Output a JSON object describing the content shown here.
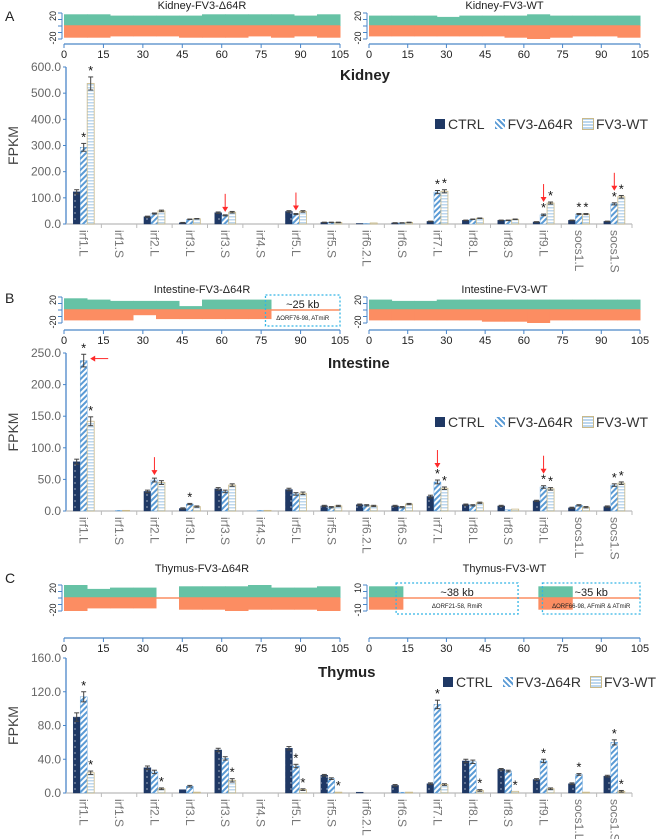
{
  "panels": {
    "a": "A",
    "b": "B",
    "c": "C"
  },
  "legend": {
    "ctrl": "CTRL",
    "d64r": "FV3-Δ64R",
    "wt": "FV3-WT"
  },
  "colors": {
    "ctrl": "#1f3864",
    "d64r": "#5b9bd5",
    "wt": "#bdd7ee",
    "wt_border": "#c9b98a",
    "coverage_plus": "#66c2a5",
    "coverage_minus": "#fc8d62",
    "axis": "#4a86c8",
    "arrow": "#ff2a2a",
    "box": "#33b5e5"
  },
  "tracks": {
    "ticks": [
      "0",
      "15",
      "30",
      "45",
      "60",
      "75",
      "90",
      "105"
    ],
    "kidney_d64r": {
      "title": "Kidney-FV3-Δ64R",
      "ymax": "20",
      "ymin": "-20"
    },
    "kidney_wt": {
      "title": "Kidney-FV3-WT",
      "ymax": "20",
      "ymin": "-20"
    },
    "intestine_d64r": {
      "title": "Intestine-FV3-Δ64R",
      "ymax": "20",
      "ymin": "-20",
      "box_size": "~25 kb",
      "box_note": "ΔORF76-98, ATmiR"
    },
    "intestine_wt": {
      "title": "Intestine-FV3-WT",
      "ymax": "20",
      "ymin": "-20"
    },
    "thymus_d64r": {
      "title": "Thymus-FV3-Δ64R",
      "ymax": "20",
      "ymin": "-20"
    },
    "thymus_wt": {
      "title": "Thymus-FV3-WT",
      "ymax": "10",
      "ymin": "-10",
      "box1_size": "~38 kb",
      "box1_note": "ΔORF21-58, RmiR",
      "box2_size": "~35 kb",
      "box2_note": "ΔORF66-98, AFmiR & ATmiR"
    }
  },
  "chart_data": [
    {
      "type": "bar",
      "title": "Kidney",
      "xlabel": "",
      "ylabel": "FPKM",
      "ylim": [
        0,
        600
      ],
      "yticks": [
        "0.0",
        "100.0",
        "200.0",
        "300.0",
        "400.0",
        "500.0",
        "600.0"
      ],
      "legend_position": "top-right",
      "categories": [
        "irf1.L",
        "irf1.S",
        "irf2.L",
        "irf3.L",
        "irf3.S",
        "irf4.S",
        "irf5.L",
        "irf5.S",
        "irf6.2.L",
        "irf6.S",
        "irf7.L",
        "irf8.L",
        "irf8.S",
        "irf9.L",
        "socs1.L",
        "socs1.S"
      ],
      "series": [
        {
          "name": "CTRL",
          "values": [
            123,
            0,
            28,
            5,
            43,
            0,
            48,
            6,
            2,
            4,
            10,
            14,
            14,
            8,
            14,
            10
          ],
          "errors": [
            8,
            0,
            2,
            1,
            3,
            0,
            3,
            1,
            0,
            1,
            1,
            1,
            1,
            1,
            1,
            1
          ]
        },
        {
          "name": "FV3-Δ64R",
          "values": [
            293,
            0,
            40,
            18,
            33,
            0,
            38,
            6,
            2,
            4,
            122,
            18,
            14,
            35,
            38,
            77
          ],
          "errors": [
            15,
            0,
            2,
            1,
            2,
            0,
            2,
            1,
            0,
            1,
            6,
            1,
            1,
            3,
            2,
            4
          ]
        },
        {
          "name": "FV3-WT",
          "values": [
            537,
            0,
            50,
            20,
            45,
            0,
            48,
            6,
            4,
            6,
            125,
            22,
            18,
            80,
            38,
            104
          ],
          "errors": [
            25,
            0,
            3,
            1,
            3,
            0,
            3,
            1,
            0,
            1,
            6,
            1,
            1,
            4,
            2,
            5
          ]
        }
      ],
      "significant": {
        "FV3-Δ64R": [
          "irf1.L",
          "irf7.L",
          "irf9.L",
          "socs1.L",
          "socs1.S"
        ],
        "FV3-WT": [
          "irf1.L",
          "irf7.L",
          "irf9.L",
          "socs1.L",
          "socs1.S"
        ]
      },
      "arrows": [
        {
          "category": "irf3.S",
          "series": "FV3-Δ64R",
          "direction": "down"
        },
        {
          "category": "irf5.L",
          "series": "FV3-Δ64R",
          "direction": "down"
        },
        {
          "category": "irf9.L",
          "series": "FV3-Δ64R",
          "direction": "down"
        },
        {
          "category": "socs1.S",
          "series": "FV3-Δ64R",
          "direction": "down"
        }
      ]
    },
    {
      "type": "bar",
      "title": "Intestine",
      "xlabel": "",
      "ylabel": "FPKM",
      "ylim": [
        0,
        250
      ],
      "yticks": [
        "0.0",
        "50.0",
        "100.0",
        "150.0",
        "200.0",
        "250.0"
      ],
      "legend_position": "top-right",
      "categories": [
        "irf1.L",
        "irf1.S",
        "irf2.L",
        "irf3.L",
        "irf3.S",
        "irf4.S",
        "irf5.L",
        "irf5.S",
        "irf6.2.L",
        "irf6.S",
        "irf7.L",
        "irf8.L",
        "irf8.S",
        "irf9.L",
        "socs1.L",
        "socs1.S"
      ],
      "series": [
        {
          "name": "CTRL",
          "values": [
            78,
            0,
            31,
            4,
            35,
            0,
            34,
            8,
            10,
            8,
            23,
            10,
            8,
            16,
            5,
            7
          ],
          "errors": [
            4,
            0,
            2,
            1,
            2,
            0,
            2,
            1,
            1,
            1,
            2,
            1,
            1,
            1,
            1,
            1
          ]
        },
        {
          "name": "FV3-Δ64R",
          "values": [
            238,
            1,
            49,
            11,
            31,
            1,
            27,
            6,
            9,
            6,
            46,
            9,
            2,
            38,
            9,
            41
          ],
          "errors": [
            10,
            0,
            3,
            1,
            2,
            0,
            2,
            1,
            1,
            1,
            3,
            1,
            0,
            2,
            1,
            2
          ]
        },
        {
          "name": "FV3-WT",
          "values": [
            142,
            1,
            45,
            7,
            41,
            1,
            28,
            8,
            8,
            11,
            36,
            13,
            3,
            35,
            6,
            44
          ],
          "errors": [
            7,
            0,
            3,
            1,
            2,
            0,
            2,
            1,
            1,
            1,
            2,
            1,
            0,
            2,
            1,
            2
          ]
        }
      ],
      "significant": {
        "FV3-Δ64R": [
          "irf1.L",
          "irf3.L",
          "irf7.L",
          "irf9.L",
          "socs1.S"
        ],
        "FV3-WT": [
          "irf1.L",
          "irf7.L",
          "irf9.L",
          "socs1.S"
        ]
      },
      "arrows": [
        {
          "category": "irf1.L",
          "series": "FV3-Δ64R",
          "direction": "left"
        },
        {
          "category": "irf2.L",
          "series": "FV3-Δ64R",
          "direction": "down"
        },
        {
          "category": "irf7.L",
          "series": "FV3-Δ64R",
          "direction": "down"
        },
        {
          "category": "irf9.L",
          "series": "FV3-Δ64R",
          "direction": "down"
        }
      ]
    },
    {
      "type": "bar",
      "title": "Thymus",
      "xlabel": "",
      "ylabel": "FPKM",
      "ylim": [
        0,
        160
      ],
      "yticks": [
        "0.0",
        "40.0",
        "80.0",
        "120.0",
        "160.0"
      ],
      "legend_position": "top-right",
      "categories": [
        "irf1.L",
        "irf1.S",
        "irf2.L",
        "irf3.L",
        "irf3.S",
        "irf4.S",
        "irf5.L",
        "irf5.S",
        "irf6.2.L",
        "irf6.S",
        "irf7.L",
        "irf8.L",
        "irf8.S",
        "irf9.L",
        "socs1.L",
        "socs1.S"
      ],
      "series": [
        {
          "name": "CTRL",
          "values": [
            90,
            0,
            30,
            4,
            51,
            0,
            53,
            21,
            1,
            9,
            11,
            38,
            28,
            16,
            11,
            20
          ],
          "errors": [
            5,
            0,
            2,
            0,
            2,
            0,
            2,
            1,
            0,
            1,
            1,
            2,
            1,
            1,
            1,
            1
          ]
        },
        {
          "name": "FV3-Δ64R",
          "values": [
            114,
            0,
            25,
            8,
            41,
            0,
            32,
            17,
            0,
            1,
            105,
            37,
            26,
            38,
            22,
            60
          ],
          "errors": [
            6,
            0,
            2,
            1,
            2,
            0,
            2,
            1,
            0,
            0,
            5,
            2,
            1,
            2,
            1,
            3
          ]
        },
        {
          "name": "FV3-WT",
          "values": [
            24,
            0,
            5,
            1,
            15,
            0,
            4,
            1,
            0,
            1,
            10,
            3,
            2,
            5,
            1,
            2
          ],
          "errors": [
            2,
            0,
            1,
            0,
            2,
            0,
            1,
            0,
            0,
            0,
            1,
            1,
            0,
            1,
            0,
            1
          ]
        }
      ],
      "significant": {
        "FV3-Δ64R": [
          "irf1.L",
          "irf5.L",
          "irf7.L",
          "irf9.L",
          "socs1.L",
          "socs1.S"
        ],
        "FV3-WT": [
          "irf1.L",
          "irf2.L",
          "irf3.S",
          "irf5.L",
          "irf5.S",
          "irf8.L",
          "irf8.S",
          "socs1.S"
        ]
      },
      "arrows": []
    }
  ]
}
